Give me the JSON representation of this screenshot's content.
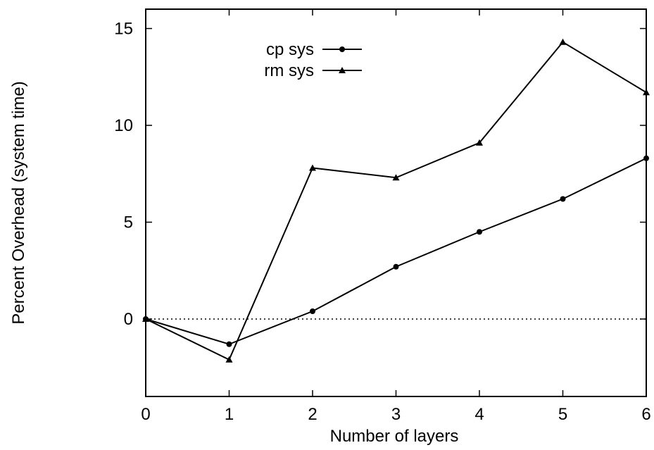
{
  "chart_data": {
    "type": "line",
    "title": "",
    "xlabel": "Number of layers",
    "ylabel": "Percent Overhead (system time)",
    "x": [
      0,
      1,
      2,
      3,
      4,
      5,
      6
    ],
    "xlim": [
      0,
      6
    ],
    "ylim": [
      -4,
      16
    ],
    "xticks": [
      0,
      1,
      2,
      3,
      4,
      5,
      6
    ],
    "yticks": [
      0,
      5,
      10,
      15
    ],
    "grid": false,
    "reference_line": {
      "y": 0,
      "style": "dotted"
    },
    "legend_position": "top-left",
    "series": [
      {
        "name": "cp sys",
        "marker": "circle",
        "values": [
          0,
          -1.3,
          0.4,
          2.7,
          4.5,
          6.2,
          8.3
        ]
      },
      {
        "name": "rm sys",
        "marker": "triangle",
        "values": [
          0,
          -2.1,
          7.8,
          7.3,
          9.1,
          14.3,
          11.7
        ]
      }
    ]
  }
}
